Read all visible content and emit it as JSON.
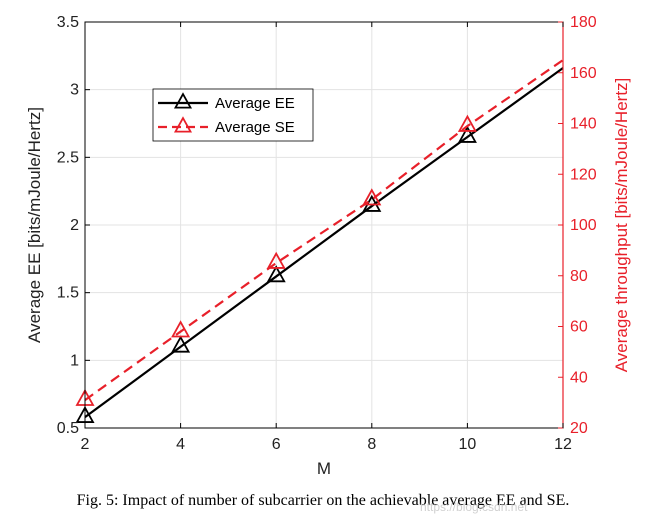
{
  "chart_data": {
    "type": "line",
    "x": [
      2,
      4,
      6,
      8,
      10,
      12
    ],
    "xticks": [
      "2",
      "4",
      "6",
      "8",
      "10",
      "12"
    ],
    "xlabel": "M",
    "xlim": [
      2,
      12
    ],
    "left_axis": {
      "label": "Average EE [bits/mJoule/Hertz]",
      "ylim": [
        0.5,
        3.5
      ],
      "ticks": [
        "0.5",
        "1",
        "1.5",
        "2",
        "2.5",
        "3",
        "3.5"
      ],
      "tick_values": [
        0.5,
        1,
        1.5,
        2,
        2.5,
        3,
        3.5
      ]
    },
    "right_axis": {
      "label": "Average throughput [bits/mJoule/Hertz]",
      "ylim": [
        20,
        180
      ],
      "ticks": [
        "20",
        "40",
        "60",
        "80",
        "100",
        "120",
        "140",
        "160",
        "180"
      ],
      "tick_values": [
        20,
        40,
        60,
        80,
        100,
        120,
        140,
        160,
        180
      ],
      "color": "#e8202a"
    },
    "series": [
      {
        "name": "Average EE",
        "axis": "left",
        "color": "#000000",
        "dash": "solid",
        "marker": "triangle",
        "x": [
          2,
          4,
          6,
          8,
          10,
          12
        ],
        "values": [
          0.58,
          1.1,
          1.62,
          2.14,
          2.65,
          3.16
        ],
        "marker_x": [
          2,
          4,
          6,
          8,
          10
        ]
      },
      {
        "name": "Average SE",
        "axis": "right",
        "color": "#e8202a",
        "dash": "dashed",
        "marker": "triangle",
        "x": [
          2,
          4,
          6,
          8,
          10,
          12
        ],
        "values": [
          31,
          58,
          85,
          110,
          139,
          165
        ],
        "marker_x": [
          2,
          4,
          6,
          8,
          10
        ]
      }
    ],
    "legend_position": "upper-left",
    "grid": true
  },
  "caption": "Fig. 5: Impact of number of subcarrier on the achievable average EE and SE.",
  "watermark": "https://blog.csdn.net"
}
